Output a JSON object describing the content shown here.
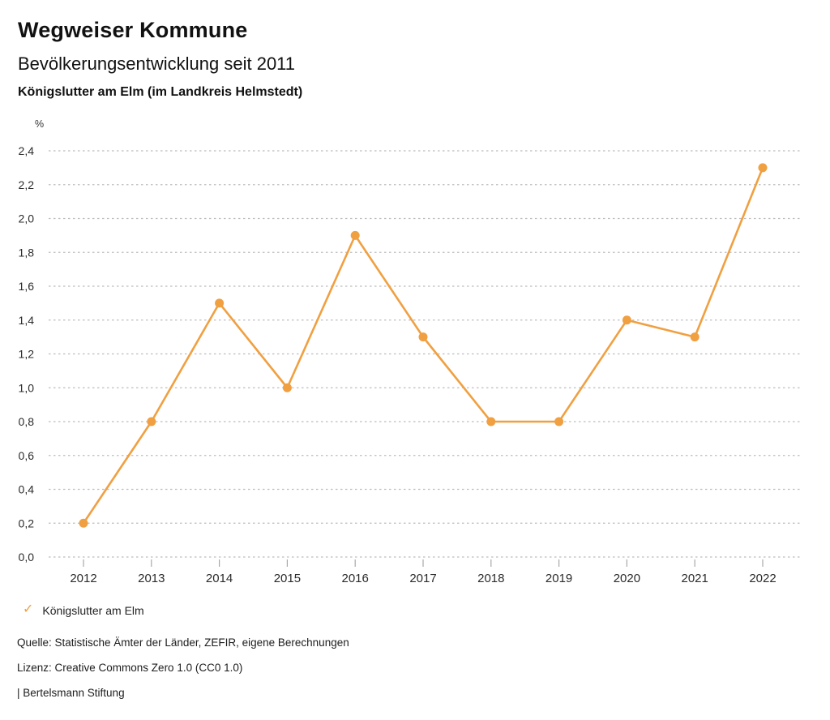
{
  "header": {
    "title": "Wegweiser Kommune",
    "subtitle": "Bevölkerungsentwicklung seit 2011",
    "region": "Königslutter am Elm (im Landkreis Helmstedt)"
  },
  "chart_data": {
    "type": "line",
    "title": "Bevölkerungsentwicklung seit 2011",
    "unit_label": "%",
    "xlabel": "",
    "ylabel": "%",
    "categories": [
      "2012",
      "2013",
      "2014",
      "2015",
      "2016",
      "2017",
      "2018",
      "2019",
      "2020",
      "2021",
      "2022"
    ],
    "series": [
      {
        "name": "Königslutter am Elm",
        "values": [
          0.2,
          0.8,
          1.5,
          1.0,
          1.9,
          1.3,
          0.8,
          0.8,
          1.4,
          1.3,
          2.3
        ]
      }
    ],
    "ylim": [
      0.0,
      2.4
    ],
    "ytick_step": 0.2,
    "decimal_separator": ",",
    "grid": "horizontal-dotted",
    "legend_position": "bottom-left",
    "colors": {
      "line": "#f0a041",
      "marker": "#f0a041",
      "gridline": "#bcbcbc",
      "tick": "#a8a8a8",
      "axis_text": "#2b2b2b"
    }
  },
  "legend": {
    "check_icon": "✓",
    "label": "Königslutter am Elm"
  },
  "footer": {
    "source": "Quelle: Statistische Ämter der Länder, ZEFIR, eigene Berechnungen",
    "license": "Lizenz: Creative Commons Zero 1.0 (CC0 1.0)",
    "attribution": "| Bertelsmann Stiftung"
  }
}
